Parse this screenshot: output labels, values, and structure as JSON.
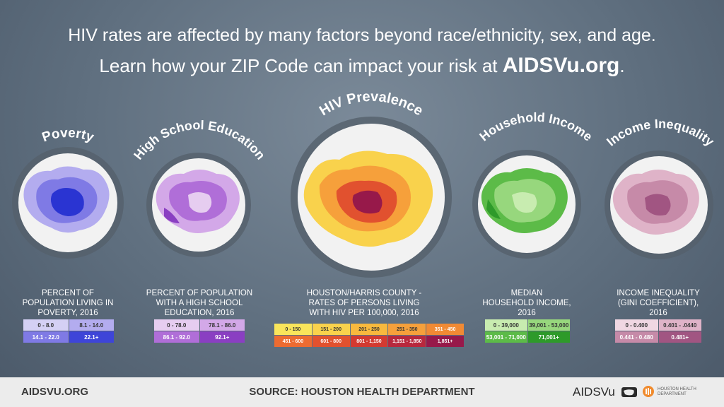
{
  "header": {
    "line1": "HIV rates are affected by many factors beyond race/ethnicity, sex, and age.",
    "line2_prefix": "Learn how your ZIP Code can impact your risk at ",
    "line2_site": "AIDSVu.org",
    "line2_suffix": "."
  },
  "maps": [
    {
      "title": "Poverty",
      "description": "PERCENT OF POPULATION LIVING IN POVERTY, 2016",
      "desc_lines": [
        "PERCENT OF",
        "POPULATION LIVING IN",
        "POVERTY, 2016"
      ],
      "legend": [
        {
          "label": "0 - 8.0",
          "color": "#d4d0f4"
        },
        {
          "label": "8.1 - 14.0",
          "color": "#b3acef"
        },
        {
          "label": "14.1 - 22.0",
          "color": "#7f7ae5"
        },
        {
          "label": "22.1+",
          "color": "#3e45d8"
        }
      ]
    },
    {
      "title": "High School Education",
      "desc_lines": [
        "PERCENT OF POPULATION",
        "WITH A HIGH SCHOOL",
        "EDUCATION, 2016"
      ],
      "legend": [
        {
          "label": "0 - 78.0",
          "color": "#e6cdf0"
        },
        {
          "label": "78.1 - 86.0",
          "color": "#d3a8e8"
        },
        {
          "label": "86.1 - 92.0",
          "color": "#b06ed8"
        },
        {
          "label": "92.1+",
          "color": "#8a3fc2"
        }
      ]
    },
    {
      "title": "HIV Prevalence",
      "desc_lines": [
        "HOUSTON/HARRIS COUNTY -",
        "RATES OF PERSONS LIVING",
        "WITH HIV PER 100,000, 2016"
      ],
      "legend": [
        {
          "label": "0 - 150",
          "color": "#f9e55b"
        },
        {
          "label": "151 - 200",
          "color": "#f9d24c"
        },
        {
          "label": "201 - 250",
          "color": "#f8b93e"
        },
        {
          "label": "251 - 350",
          "color": "#f6a03b"
        },
        {
          "label": "351 - 450",
          "color": "#f18a34"
        },
        {
          "label": "451 - 600",
          "color": "#ec6b31"
        },
        {
          "label": "601 - 800",
          "color": "#e1512f"
        },
        {
          "label": "801 - 1,150",
          "color": "#d33a31"
        },
        {
          "label": "1,151 - 1,850",
          "color": "#b8283d"
        },
        {
          "label": "1,851+",
          "color": "#97194a"
        }
      ]
    },
    {
      "title": "Household Income",
      "desc_lines": [
        "MEDIAN",
        "HOUSEHOLD INCOME,",
        "2016"
      ],
      "legend": [
        {
          "label": "0 - 39,000",
          "color": "#c8ecb0"
        },
        {
          "label": "39,001 - 53,000",
          "color": "#97d77d"
        },
        {
          "label": "53,001 - 71,000",
          "color": "#5cbb48"
        },
        {
          "label": "71,001+",
          "color": "#2e9a2a"
        }
      ]
    },
    {
      "title": "Income Inequality",
      "desc_lines": [
        "INCOME INEQUALITY",
        "(GINI COEFFICIENT),",
        "2016"
      ],
      "legend": [
        {
          "label": "0 - 0.400",
          "color": "#f0d7e2"
        },
        {
          "label": "0.401 - .0440",
          "color": "#dfb3c8"
        },
        {
          "label": "0.441 - 0.480",
          "color": "#c68aa8"
        },
        {
          "label": "0.481+",
          "color": "#a15582"
        }
      ]
    }
  ],
  "footer": {
    "url": "AIDSVU.ORG",
    "source": "SOURCE: HOUSTON HEALTH DEPARTMENT",
    "brand": "AIDSVu",
    "partner_line1": "HOUSTON HEALTH",
    "partner_line2": "DEPARTMENT"
  }
}
